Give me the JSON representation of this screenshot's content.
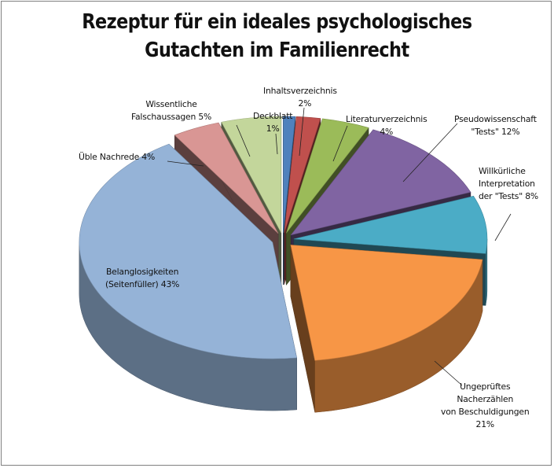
{
  "chart_data": {
    "type": "pie",
    "title": "Rezeptur für ein ideales psychologisches Gutachten im Familienrecht",
    "title_lines": [
      "Rezeptur für ein ideales psychologisches",
      "Gutachten im Familienrecht"
    ],
    "style": "3d-exploded",
    "slices": [
      {
        "label": "Deckblatt",
        "value": 1,
        "color": "#4F81BD"
      },
      {
        "label": "Inhaltsverzeichnis",
        "value": 2,
        "color": "#C0504D"
      },
      {
        "label": "Literaturverzeichnis",
        "value": 4,
        "color": "#9BBB59"
      },
      {
        "label": "Pseudowissenschaft \"Tests\"",
        "value": 12,
        "color": "#8064A2"
      },
      {
        "label": "Willkürliche Interpretation der \"Tests\"",
        "value": 8,
        "color": "#4BACC6"
      },
      {
        "label": "Ungeprüftes Nacherzählen von Beschuldigungen",
        "value": 21,
        "color": "#F79646"
      },
      {
        "label": "Belanglosigkeiten (Seitenfüller)",
        "value": 43,
        "color": "#95B3D7"
      },
      {
        "label": "Üble Nachrede",
        "value": 4,
        "color": "#D99694"
      },
      {
        "label": "Wissentliche Falschaussagen",
        "value": 5,
        "color": "#C3D69B"
      }
    ],
    "labels": {
      "deckblatt": [
        "Deckblatt",
        "1%"
      ],
      "inhalt": [
        "Inhaltsverzeichnis",
        "2%"
      ],
      "literatur": [
        "Literaturverzeichnis",
        "4%"
      ],
      "pseudo": [
        "Pseudowissenschaft",
        "\"Tests\"  12%"
      ],
      "willk": [
        "Willkürliche",
        "Interpretation",
        "der \"Tests\"  8%"
      ],
      "unge": [
        "Ungeprüftes",
        "Nacherzählen",
        "von Beschuldigungen",
        "21%"
      ],
      "belang": [
        "Belanglosigkeiten",
        "(Seitenfüller)  43%"
      ],
      "uble": [
        "Üble Nachrede   4%"
      ],
      "wiss": [
        "Wissentliche",
        "Falschaussagen  5%"
      ]
    }
  }
}
